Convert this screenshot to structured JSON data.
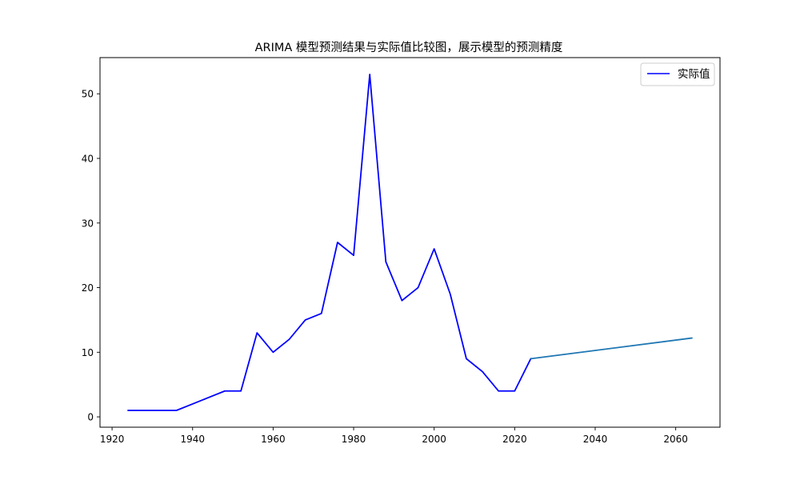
{
  "chart_data": {
    "type": "line",
    "title": "ARIMA 模型预测结果与实际值比较图，展示模型的预测精度",
    "xlabel": "",
    "ylabel": "",
    "xlim": [
      1917,
      2071
    ],
    "ylim": [
      -1.6,
      55.6
    ],
    "xticks": [
      1920,
      1940,
      1960,
      1980,
      2000,
      2020,
      2040,
      2060
    ],
    "yticks": [
      0,
      10,
      20,
      30,
      40,
      50
    ],
    "grid": false,
    "legend": {
      "position": "top-right",
      "entries": [
        "实际值"
      ]
    },
    "series": [
      {
        "name": "实际值",
        "color": "#0000ff",
        "x": [
          1924,
          1928,
          1932,
          1936,
          1940,
          1944,
          1948,
          1952,
          1956,
          1960,
          1964,
          1968,
          1972,
          1976,
          1980,
          1984,
          1988,
          1992,
          1996,
          2000,
          2004,
          2008,
          2012,
          2016,
          2020,
          2024
        ],
        "y": [
          1,
          1,
          1,
          1,
          2,
          3,
          4,
          4,
          13,
          10,
          12,
          15,
          16,
          27,
          25,
          53,
          24,
          18,
          20,
          26,
          19,
          9,
          7,
          4,
          4,
          9
        ]
      },
      {
        "color": "#1f77b4",
        "x": [
          2024,
          2064
        ],
        "y": [
          9,
          12.2
        ]
      }
    ]
  }
}
